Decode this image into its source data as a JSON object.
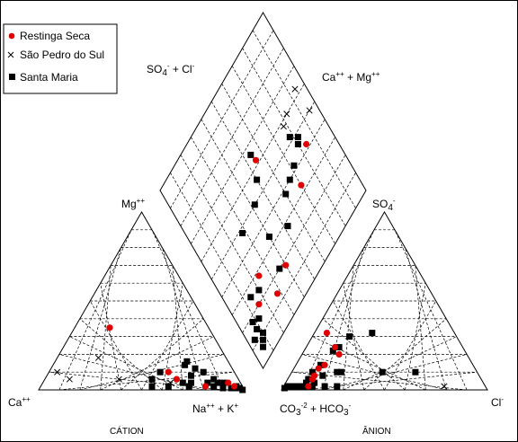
{
  "chart_data": {
    "type": "scatter",
    "subtype": "piper-trilinear",
    "legend": {
      "placement": "top-left",
      "entries": [
        {
          "name": "Restinga Seca",
          "marker": "circle",
          "color": "#e00000"
        },
        {
          "name": "São Pedro do Sul",
          "marker": "x",
          "color": "#000000"
        },
        {
          "name": "Santa Maria",
          "marker": "square",
          "color": "#000000"
        }
      ]
    },
    "labels": {
      "cation_top": "Mg",
      "cation_top_sup": "++",
      "cation_left": "Ca",
      "cation_left_sup": "++",
      "cation_right": "Na",
      "cation_right_sup": "++",
      "cation_right_b": " + K",
      "cation_right_b_sup": "+",
      "anion_top": "SO",
      "anion_top_sub": "4",
      "anion_top_sup": "-",
      "anion_right": "Cl",
      "anion_right_sup": "-",
      "anion_left": "CO",
      "anion_left_sub": "3",
      "anion_left_sup": "-2",
      "anion_left_b": " + HCO",
      "anion_left_b_sub": "3",
      "anion_left_b_sup": "-",
      "diamond_left": "SO",
      "diamond_left_sub": "4",
      "diamond_left_sup": "-",
      "diamond_left_b": " + Cl",
      "diamond_left_b_sup": "-",
      "diamond_right": "Ca",
      "diamond_right_sup": "++",
      "diamond_right_b": " + Mg",
      "diamond_right_b_sup": "++",
      "cation_title": "CÁTION",
      "anion_title": "ÂNION"
    },
    "grid": true,
    "grid_divisions": 10,
    "cation_points": {
      "note_units": "percent of total cations: ca, mg, nak",
      "Restinga Seca": [
        {
          "ca": 48,
          "mg": 35,
          "nak": 17
        },
        {
          "ca": 32,
          "mg": 10,
          "nak": 58
        },
        {
          "ca": 30,
          "mg": 6,
          "nak": 64
        },
        {
          "ca": 18,
          "mg": 2,
          "nak": 80
        },
        {
          "ca": 6,
          "mg": 4,
          "nak": 90
        },
        {
          "ca": 4,
          "mg": 2,
          "nak": 94
        }
      ],
      "São Pedro do Sul": [
        {
          "ca": 86,
          "mg": 10,
          "nak": 4
        },
        {
          "ca": 82,
          "mg": 6,
          "nak": 12
        },
        {
          "ca": 62,
          "mg": 18,
          "nak": 20
        },
        {
          "ca": 58,
          "mg": 6,
          "nak": 36
        },
        {
          "ca": 34,
          "mg": 4,
          "nak": 62
        }
      ],
      "Santa Maria": [
        {
          "ca": 36,
          "mg": 10,
          "nak": 54
        },
        {
          "ca": 28,
          "mg": 4,
          "nak": 68
        },
        {
          "ca": 26,
          "mg": 2,
          "nak": 72
        },
        {
          "ca": 22,
          "mg": 14,
          "nak": 64
        },
        {
          "ca": 20,
          "mg": 16,
          "nak": 64
        },
        {
          "ca": 22,
          "mg": 8,
          "nak": 70
        },
        {
          "ca": 18,
          "mg": 12,
          "nak": 70
        },
        {
          "ca": 16,
          "mg": 4,
          "nak": 80
        },
        {
          "ca": 15,
          "mg": 10,
          "nak": 75
        },
        {
          "ca": 14,
          "mg": 2,
          "nak": 84
        },
        {
          "ca": 12,
          "mg": 6,
          "nak": 82
        },
        {
          "ca": 11,
          "mg": 4,
          "nak": 85
        },
        {
          "ca": 10,
          "mg": 1,
          "nak": 89
        },
        {
          "ca": 8,
          "mg": 4,
          "nak": 88
        },
        {
          "ca": 6,
          "mg": 1,
          "nak": 93
        },
        {
          "ca": 4,
          "mg": 1,
          "nak": 95
        },
        {
          "ca": 3,
          "mg": 2,
          "nak": 95
        },
        {
          "ca": 2,
          "mg": 1,
          "nak": 97
        },
        {
          "ca": 1,
          "mg": 0,
          "nak": 99
        },
        {
          "ca": 44,
          "mg": 2,
          "nak": 54
        },
        {
          "ca": 42,
          "mg": 6,
          "nak": 52
        },
        {
          "ca": 36,
          "mg": 2,
          "nak": 62
        },
        {
          "ca": 24,
          "mg": 4,
          "nak": 72
        }
      ]
    },
    "anion_points": {
      "note_units": "percent of total anions: hco3, so4, cl",
      "Restinga Seca": [
        {
          "hco3": 62,
          "so4": 32,
          "cl": 6
        },
        {
          "hco3": 62,
          "so4": 24,
          "cl": 14
        },
        {
          "hco3": 62,
          "so4": 20,
          "cl": 18
        },
        {
          "hco3": 72,
          "so4": 14,
          "cl": 14
        },
        {
          "hco3": 76,
          "so4": 12,
          "cl": 12
        },
        {
          "hco3": 80,
          "so4": 8,
          "cl": 12
        },
        {
          "hco3": 82,
          "so4": 6,
          "cl": 12
        },
        {
          "hco3": 86,
          "so4": 2,
          "cl": 12
        }
      ],
      "São Pedro do Sul": [
        {
          "hco3": 96,
          "so4": 2,
          "cl": 2
        },
        {
          "hco3": 88,
          "so4": 2,
          "cl": 10
        },
        {
          "hco3": 20,
          "so4": 2,
          "cl": 78
        }
      ],
      "Santa Maria": [
        {
          "hco3": 52,
          "so4": 30,
          "cl": 18
        },
        {
          "hco3": 60,
          "so4": 24,
          "cl": 16
        },
        {
          "hco3": 64,
          "so4": 22,
          "cl": 14
        },
        {
          "hco3": 68,
          "so4": 10,
          "cl": 22
        },
        {
          "hco3": 74,
          "so4": 14,
          "cl": 12
        },
        {
          "hco3": 76,
          "so4": 8,
          "cl": 16
        },
        {
          "hco3": 80,
          "so4": 10,
          "cl": 10
        },
        {
          "hco3": 82,
          "so4": 4,
          "cl": 14
        },
        {
          "hco3": 84,
          "so4": 6,
          "cl": 10
        },
        {
          "hco3": 86,
          "so4": 4,
          "cl": 10
        },
        {
          "hco3": 88,
          "so4": 2,
          "cl": 10
        },
        {
          "hco3": 90,
          "so4": 2,
          "cl": 8
        },
        {
          "hco3": 92,
          "so4": 2,
          "cl": 6
        },
        {
          "hco3": 94,
          "so4": 2,
          "cl": 4
        },
        {
          "hco3": 96,
          "so4": 2,
          "cl": 2
        },
        {
          "hco3": 98,
          "so4": 1,
          "cl": 1
        },
        {
          "hco3": 84,
          "so4": 2,
          "cl": 14
        },
        {
          "hco3": 78,
          "so4": 2,
          "cl": 20
        },
        {
          "hco3": 72,
          "so4": 2,
          "cl": 26
        },
        {
          "hco3": 66,
          "so4": 10,
          "cl": 24
        },
        {
          "hco3": 30,
          "so4": 10,
          "cl": 60
        },
        {
          "hco3": 46,
          "so4": 10,
          "cl": 44
        },
        {
          "hco3": 40,
          "so4": 32,
          "cl": 28
        }
      ]
    },
    "diamond_points": {
      "note_units": "percent: so4cl (SO4 + Cl of anions), camg (Ca + Mg of cations)",
      "Restinga Seca": [
        {
          "so4cl": 42,
          "camg": 84
        },
        {
          "so4cl": 33,
          "camg": 70
        },
        {
          "so4cl": 18,
          "camg": 40
        },
        {
          "so4cl": 62,
          "camg": 55
        },
        {
          "so4cl": 14,
          "camg": 28
        },
        {
          "so4cl": 20,
          "camg": 16
        },
        {
          "so4cl": 28,
          "camg": 24
        }
      ],
      "São Pedro do Sul": [
        {
          "so4cl": 63,
          "camg": 94
        },
        {
          "so4cl": 50,
          "camg": 95
        },
        {
          "so4cl": 60,
          "camg": 83
        },
        {
          "so4cl": 58,
          "camg": 78
        }
      ],
      "Santa Maria": [
        {
          "so4cl": 50,
          "camg": 42
        },
        {
          "so4cl": 48,
          "camg": 28
        },
        {
          "so4cl": 28,
          "camg": 52
        },
        {
          "so4cl": 38,
          "camg": 60
        },
        {
          "so4cl": 34,
          "camg": 40
        },
        {
          "so4cl": 40,
          "camg": 66
        },
        {
          "so4cl": 42,
          "camg": 72
        },
        {
          "so4cl": 46,
          "camg": 80
        },
        {
          "so4cl": 48,
          "camg": 82
        },
        {
          "so4cl": 52,
          "camg": 78
        },
        {
          "so4cl": 66,
          "camg": 54
        },
        {
          "so4cl": 56,
          "camg": 50
        },
        {
          "so4cl": 20,
          "camg": 36
        },
        {
          "so4cl": 24,
          "camg": 20
        },
        {
          "so4cl": 16,
          "camg": 12
        },
        {
          "so4cl": 14,
          "camg": 8
        },
        {
          "so4cl": 10,
          "camg": 10
        },
        {
          "so4cl": 8,
          "camg": 8
        },
        {
          "so4cl": 12,
          "camg": 4
        },
        {
          "so4cl": 6,
          "camg": 6
        },
        {
          "so4cl": 18,
          "camg": 8
        },
        {
          "so4cl": 26,
          "camg": 14
        }
      ]
    }
  }
}
